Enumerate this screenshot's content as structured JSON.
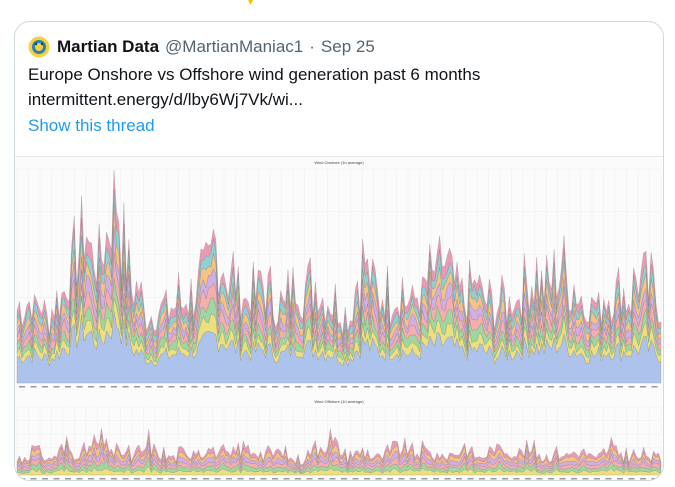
{
  "tweet": {
    "author_name": "Martian Data",
    "handle": "@MartianManiac1",
    "separator": "·",
    "date": "Sep 25",
    "text_line1": "Europe Onshore vs Offshore wind generation past 6 months",
    "text_line2": "intermittent.energy/d/lby6Wj7Vk/wi...",
    "show_thread": "Show this thread"
  },
  "colors": {
    "link": "#1d9bf0",
    "border": "#cfd9de",
    "muted": "#536471"
  },
  "icons": {
    "avatar": "martian-avatar-icon"
  },
  "chart_data": [
    {
      "type": "area",
      "title": "Wind Onshore (1h average)",
      "x_tick_count": 56,
      "series_colors": [
        "#9fb8e8",
        "#e9d96a",
        "#8fcf8f",
        "#f2a0a0",
        "#c9a0e0",
        "#f3b870",
        "#7fc8c8",
        "#e58aa8"
      ],
      "peak_profile": [
        0.38,
        0.42,
        0.35,
        0.55,
        0.8,
        0.6,
        0.95,
        0.5,
        0.35,
        0.4,
        0.45,
        0.5,
        0.7,
        0.55,
        0.45,
        0.5,
        0.4,
        0.55,
        0.5,
        0.45,
        0.35,
        0.6,
        0.45,
        0.5,
        0.4,
        0.55,
        0.6,
        0.45,
        0.5,
        0.4,
        0.45,
        0.55,
        0.5,
        0.6,
        0.45,
        0.4,
        0.5,
        0.45,
        0.55,
        0.4
      ]
    },
    {
      "type": "area",
      "title": "Wind Offshore (1h average)",
      "x_tick_count": 56,
      "series_colors": [
        "#e9d96a",
        "#8fcf8f",
        "#f2a0a0",
        "#c9a0e0",
        "#f3b870",
        "#e58aa8"
      ],
      "peak_profile": [
        0.3,
        0.55,
        0.35,
        0.6,
        0.45,
        0.7,
        0.5,
        0.4,
        0.65,
        0.35,
        0.45,
        0.55,
        0.5,
        0.4,
        0.6,
        0.45,
        0.5,
        0.3,
        0.55,
        0.65,
        0.4,
        0.5,
        0.35,
        0.6,
        0.45,
        0.5,
        0.4,
        0.55,
        0.35,
        0.6,
        0.45,
        0.5,
        0.4,
        0.45,
        0.5,
        0.35,
        0.55,
        0.4,
        0.45,
        0.35
      ]
    }
  ]
}
